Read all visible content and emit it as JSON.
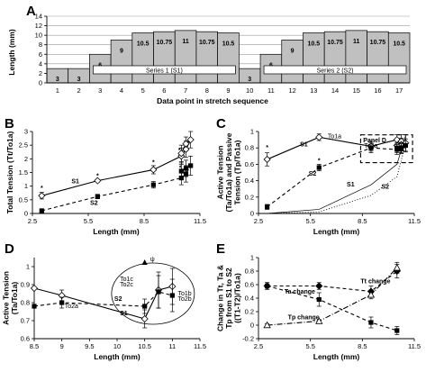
{
  "figure": {
    "panel_letters": [
      "A",
      "B",
      "C",
      "D",
      "E"
    ]
  },
  "chart_data": [
    {
      "panel": "A",
      "type": "bar",
      "xlabel": "Data point in stretch sequence",
      "ylabel": "Length (mm)",
      "ylim": [
        0,
        14
      ],
      "yticks": [
        0,
        2,
        4,
        6,
        8,
        10,
        12,
        14
      ],
      "categories": [
        "1",
        "2",
        "3",
        "4",
        "5",
        "6",
        "7",
        "8",
        "9",
        "10",
        "11",
        "12",
        "13",
        "14",
        "15",
        "16",
        "17"
      ],
      "values": [
        3,
        3,
        6,
        9,
        10.5,
        10.75,
        11,
        10.75,
        10.5,
        3,
        6,
        9,
        10.5,
        10.75,
        11,
        10.75,
        10.5
      ],
      "bar_labels": [
        "3",
        "3",
        "6",
        "9",
        "10.5",
        "10.75",
        "11",
        "10.75",
        "10.5",
        "3",
        "6",
        "9",
        "10.5",
        "10.75",
        "11",
        "10.75",
        "10.5"
      ],
      "series_boxes": [
        {
          "label": "Series 1 (S1)",
          "from": 3,
          "to": 9
        },
        {
          "label": "Series 2 (S2)",
          "from": 11,
          "to": 17
        }
      ],
      "grid": "horizontal",
      "bar_color": "#c0c0c0"
    },
    {
      "panel": "B",
      "type": "line",
      "xlabel": "Length (mm)",
      "ylabel": "Total Tension (Tt/To1a)",
      "xlim": [
        2.5,
        11.5
      ],
      "ylim": [
        0,
        3
      ],
      "xticks": [
        "2.5",
        "5.5",
        "8.5",
        "11.5"
      ],
      "yticks": [
        "0",
        "0.5",
        "1",
        "1.5",
        "2",
        "2.5",
        "3"
      ],
      "series": [
        {
          "name": "S1",
          "style": "solid",
          "marker": "open-diamond",
          "x": [
            3,
            6,
            9,
            10.5,
            10.75,
            11,
            10.75,
            10.5
          ],
          "y": [
            0.65,
            1.2,
            1.6,
            2.1,
            2.35,
            2.7,
            2.55,
            2.2
          ],
          "err": [
            0.12,
            0.05,
            0.15,
            0.3,
            0.3,
            0.3,
            0.25,
            0.3
          ]
        },
        {
          "name": "S2",
          "style": "dashed",
          "marker": "filled-square",
          "x": [
            3,
            6,
            9,
            10.5,
            10.75,
            11,
            10.75,
            10.5
          ],
          "y": [
            0.1,
            0.62,
            1.05,
            1.3,
            1.45,
            1.75,
            1.65,
            1.55
          ],
          "err": [
            0.05,
            0.08,
            0.12,
            0.25,
            0.3,
            0.35,
            0.3,
            0.3
          ]
        }
      ],
      "annotations": [
        "*",
        "*",
        "*",
        "*",
        "*",
        "S1",
        "S2"
      ]
    },
    {
      "panel": "C",
      "type": "line",
      "xlabel": "Length (mm)",
      "ylabel": "Active Tension (Ta/To1a) and Passive Tension (Tp/To1a)",
      "ylabel_lines": [
        "Active Tension",
        "(Ta/To1a) and Passive",
        "Tension (Tp/To1a)"
      ],
      "xlim": [
        2.5,
        11.5
      ],
      "ylim": [
        0,
        1
      ],
      "xticks": [
        "2.5",
        "5.5",
        "8.5",
        "11.5"
      ],
      "yticks": [
        "0",
        "0.2",
        "0.4",
        "0.6",
        "0.8",
        "1"
      ],
      "series": [
        {
          "name": "S1",
          "style": "solid",
          "marker": "open-diamond",
          "x": [
            3,
            6,
            9,
            10.5,
            10.75,
            11,
            10.75,
            10.5
          ],
          "y": [
            0.66,
            0.93,
            0.82,
            0.9,
            0.88,
            0.86,
            0.84,
            0.83
          ],
          "err": [
            0.08,
            0.04,
            0.06,
            0.06,
            0.08,
            0.1,
            0.08,
            0.06
          ]
        },
        {
          "name": "S2",
          "style": "dashed",
          "marker": "filled-square",
          "x": [
            3,
            6,
            9,
            10.5,
            10.75,
            11,
            10.75,
            10.5
          ],
          "y": [
            0.08,
            0.56,
            0.8,
            0.78,
            0.8,
            0.83,
            0.79,
            0.8
          ],
          "err": [
            0.03,
            0.04,
            0.06,
            0.06,
            0.06,
            0.08,
            0.06,
            0.06
          ]
        },
        {
          "name": "S1",
          "style": "solid-thin",
          "marker": "none",
          "x": [
            3,
            6,
            9,
            10.5,
            11
          ],
          "y": [
            0,
            0.05,
            0.35,
            0.6,
            0.95
          ]
        },
        {
          "name": "S2",
          "style": "dotted",
          "marker": "none",
          "x": [
            3,
            6,
            9,
            10.5,
            11
          ],
          "y": [
            0,
            0.02,
            0.22,
            0.45,
            0.85
          ]
        }
      ],
      "annotations": [
        "To1a",
        "To2a",
        "Panel D",
        "*",
        "*",
        "S1",
        "S2",
        "S1",
        "S2"
      ]
    },
    {
      "panel": "D",
      "type": "line",
      "xlabel": "Length (mm)",
      "ylabel": "Active Tension (Ta/To1a)",
      "ylabel_lines": [
        "Active Tension",
        "(Ta/To1a)"
      ],
      "xlim": [
        8.5,
        11.5
      ],
      "ylim": [
        0.6,
        1.05
      ],
      "xticks": [
        "8.5",
        "9",
        "9.5",
        "10",
        "10.5",
        "11",
        "11.5"
      ],
      "yticks": [
        "0.6",
        "0.7",
        "0.8",
        "0.9",
        "1"
      ],
      "series": [
        {
          "name": "S1",
          "style": "solid",
          "marker": "open-diamond",
          "x": [
            8.5,
            9,
            10.5,
            10.75,
            11
          ],
          "y": [
            0.88,
            0.84,
            0.71,
            0.87,
            0.89
          ],
          "err": [
            0,
            0.03,
            0.05,
            0.1,
            0.1
          ]
        },
        {
          "name": "S2",
          "style": "dashed",
          "marker": "filled-square",
          "x": [
            8.5,
            9,
            10.5,
            10.75,
            11
          ],
          "y": [
            0.78,
            0.8,
            0.78,
            0.86,
            0.84
          ],
          "err": [
            0,
            0.03,
            0.04,
            0.09,
            0.09
          ]
        }
      ],
      "annotations": [
        "To2a",
        "To1c",
        "To2c",
        "To1b",
        "To2b",
        "S1",
        "S2",
        "ψ"
      ]
    },
    {
      "panel": "E",
      "type": "line",
      "xlabel": "Length (mm)",
      "ylabel": "Change in Tt, Ta & Tp from S1 to S2 ((T1-T2)/To1a)",
      "ylabel_lines": [
        "Change in Tt, Ta &",
        "Tp from S1 to S2",
        "((T1-T2)/To1a)"
      ],
      "xlim": [
        2.5,
        11.5
      ],
      "ylim": [
        -0.2,
        1
      ],
      "xticks": [
        "2.5",
        "5.5",
        "8.5",
        "11.5"
      ],
      "yticks": [
        "-0.2",
        "0",
        "0.2",
        "0.4",
        "0.6",
        "0.8",
        "1"
      ],
      "series": [
        {
          "name": "Tt change",
          "style": "dashed",
          "marker": "filled-diamond",
          "x": [
            3,
            6,
            9,
            10.5
          ],
          "y": [
            0.58,
            0.58,
            0.5,
            0.8
          ],
          "err": [
            0.05,
            0.05,
            0.08,
            0.1
          ]
        },
        {
          "name": "Ta change",
          "style": "dashed",
          "marker": "filled-square",
          "x": [
            3,
            6,
            9,
            10.5
          ],
          "y": [
            0.58,
            0.38,
            0.04,
            -0.08
          ],
          "err": [
            0.05,
            0.1,
            0.08,
            0.06
          ]
        },
        {
          "name": "Tp change",
          "style": "dashdot",
          "marker": "open-triangle",
          "x": [
            3,
            6,
            9,
            10.5
          ],
          "y": [
            0,
            0.06,
            0.45,
            0.85
          ],
          "err": [
            0.02,
            0.02,
            0.06,
            0.08
          ]
        }
      ]
    }
  ]
}
